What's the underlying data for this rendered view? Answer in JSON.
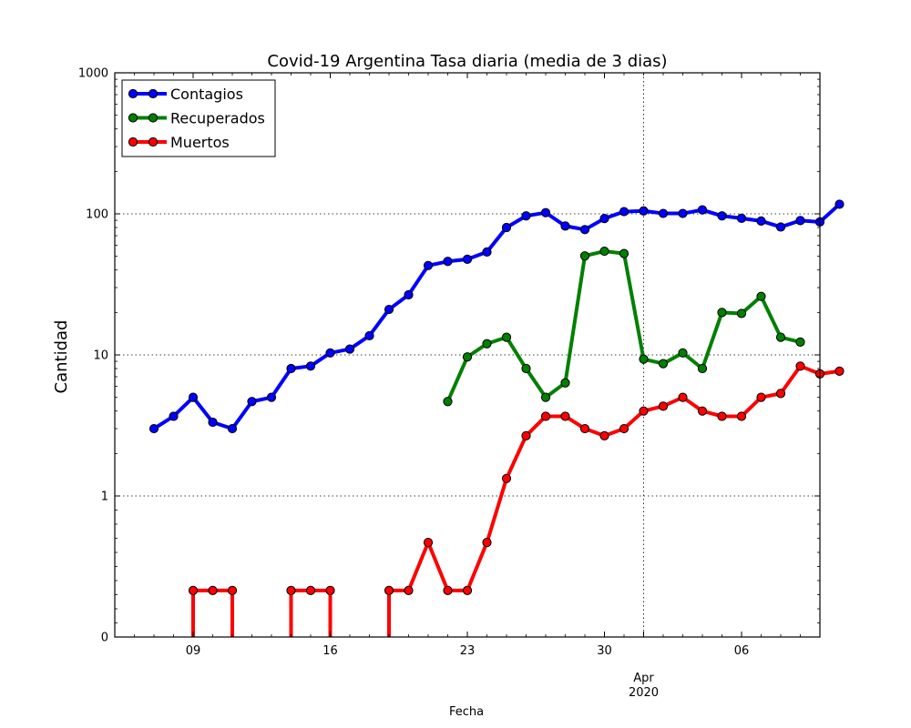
{
  "chart_data": {
    "type": "line",
    "title": "Covid-19 Argentina Tasa diaria (media de 3 dias)",
    "xlabel": "Fecha",
    "ylabel": "Cantidad",
    "y_scale": "symlog",
    "ylim": [
      0,
      1000
    ],
    "y_ticks": [
      0,
      1,
      10,
      100,
      1000
    ],
    "y_tick_labels": [
      "0",
      "1",
      "10",
      "100",
      "1000"
    ],
    "xlim": [
      "2020-03-05",
      "2020-04-10"
    ],
    "x_ticks": [
      "2020-03-09",
      "2020-03-16",
      "2020-03-23",
      "2020-03-30",
      "2020-04-06"
    ],
    "x_tick_labels": [
      "09",
      "16",
      "23",
      "30",
      "06"
    ],
    "x_month_marker": {
      "date": "2020-04-01",
      "label_line1": "Apr",
      "label_line2": "2020"
    },
    "grid": true,
    "legend_position": "upper-left",
    "series": [
      {
        "name": "Contagios",
        "color": "#0000ff",
        "x": [
          "2020-03-07",
          "2020-03-08",
          "2020-03-09",
          "2020-03-10",
          "2020-03-11",
          "2020-03-12",
          "2020-03-13",
          "2020-03-14",
          "2020-03-15",
          "2020-03-16",
          "2020-03-17",
          "2020-03-18",
          "2020-03-19",
          "2020-03-20",
          "2020-03-21",
          "2020-03-22",
          "2020-03-23",
          "2020-03-24",
          "2020-03-25",
          "2020-03-26",
          "2020-03-27",
          "2020-03-28",
          "2020-03-29",
          "2020-03-30",
          "2020-03-31",
          "2020-04-01",
          "2020-04-02",
          "2020-04-03",
          "2020-04-04",
          "2020-04-05",
          "2020-04-06",
          "2020-04-07",
          "2020-04-08",
          "2020-04-09",
          "2020-04-10",
          "2020-04-11"
        ],
        "y": [
          3.0,
          3.67,
          5.0,
          3.33,
          3.0,
          4.67,
          5.0,
          8.0,
          8.33,
          10.33,
          11.0,
          13.67,
          21.0,
          26.67,
          43.0,
          46.0,
          47.67,
          53.67,
          80.0,
          96.67,
          102.0,
          82.0,
          77.33,
          92.67,
          103.67,
          105.0,
          100.67,
          100.67,
          106.67,
          96.67,
          93.0,
          89.0,
          80.67,
          89.67,
          87.67,
          117.0
        ]
      },
      {
        "name": "Recuperados",
        "color": "#008000",
        "x": [
          "2020-03-22",
          "2020-03-23",
          "2020-03-24",
          "2020-03-25",
          "2020-03-26",
          "2020-03-27",
          "2020-03-28",
          "2020-03-29",
          "2020-03-30",
          "2020-03-31",
          "2020-04-01",
          "2020-04-02",
          "2020-04-03",
          "2020-04-04",
          "2020-04-05",
          "2020-04-06",
          "2020-04-07",
          "2020-04-08",
          "2020-04-09"
        ],
        "y": [
          4.67,
          9.67,
          12.0,
          13.33,
          8.0,
          5.0,
          6.33,
          50.33,
          54.33,
          52.33,
          9.33,
          8.67,
          10.33,
          8.0,
          20.0,
          19.67,
          26.0,
          13.33,
          12.33
        ]
      },
      {
        "name": "Muertos",
        "color": "#ff0000",
        "x": [
          "2020-03-09",
          "2020-03-10",
          "2020-03-11",
          "2020-03-14",
          "2020-03-15",
          "2020-03-16",
          "2020-03-19",
          "2020-03-20",
          "2020-03-21",
          "2020-03-22",
          "2020-03-23",
          "2020-03-24",
          "2020-03-25",
          "2020-03-26",
          "2020-03-27",
          "2020-03-28",
          "2020-03-29",
          "2020-03-30",
          "2020-03-31",
          "2020-04-01",
          "2020-04-02",
          "2020-04-03",
          "2020-04-04",
          "2020-04-05",
          "2020-04-06",
          "2020-04-07",
          "2020-04-08",
          "2020-04-09",
          "2020-04-10",
          "2020-04-11"
        ],
        "y": [
          0.33,
          0.33,
          0.33,
          0.33,
          0.33,
          0.33,
          0.33,
          0.33,
          0.67,
          0.33,
          0.33,
          0.67,
          1.33,
          2.67,
          3.67,
          3.67,
          3.0,
          2.67,
          3.0,
          4.0,
          4.33,
          5.0,
          4.0,
          3.67,
          3.67,
          5.0,
          5.33,
          8.33,
          7.33,
          7.67
        ],
        "drops_to_zero": [
          [
            "2020-03-09",
            "2020-03-11"
          ],
          [
            "2020-03-14",
            "2020-03-16"
          ],
          [
            "2020-03-19",
            "2020-03-19"
          ]
        ]
      }
    ]
  }
}
